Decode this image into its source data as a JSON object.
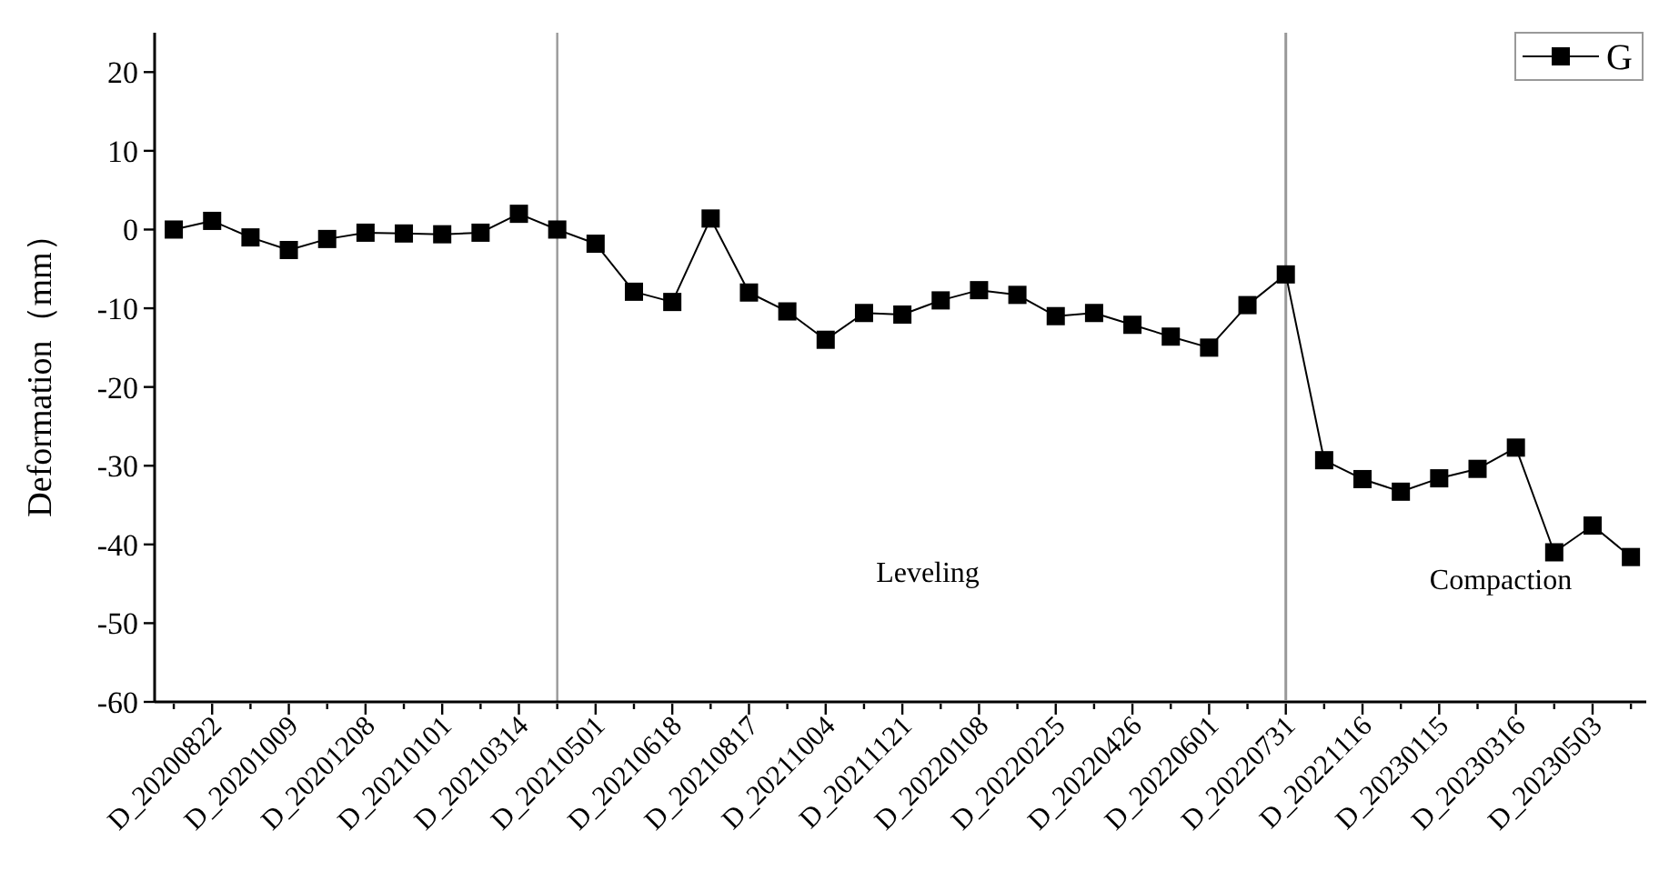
{
  "chart_data": {
    "type": "line",
    "ylabel": "Deformation（mm）",
    "categories": [
      null,
      "D_20200822",
      null,
      "D_20201009",
      null,
      "D_20201208",
      null,
      "D_20210101",
      null,
      "D_20210314",
      null,
      "D_20210501",
      null,
      "D_20210618",
      null,
      "D_20210817",
      null,
      "D_20211004",
      null,
      "D_20211121",
      null,
      "D_20220108",
      null,
      "D_20220225",
      null,
      "D_20220426",
      null,
      "D_20220601",
      null,
      "D_20220731",
      null,
      "D_20221116",
      null,
      "D_20230115",
      null,
      "D_20230316",
      null,
      "D_20230503",
      null
    ],
    "series": [
      {
        "name": "G",
        "color": "#000000",
        "values": [
          0,
          1.1,
          -1.0,
          -2.6,
          -1.2,
          -0.4,
          -0.5,
          -0.6,
          -0.4,
          2.0,
          0,
          -1.8,
          -7.9,
          -9.2,
          1.4,
          -8.0,
          -10.4,
          -14.0,
          -10.6,
          -10.8,
          -9.0,
          -7.7,
          -8.3,
          -11.0,
          -10.6,
          -12.1,
          -13.6,
          -15.0,
          -9.6,
          -5.7,
          -29.3,
          -31.7,
          -33.3,
          -31.6,
          -30.4,
          -27.7,
          -41.0,
          -37.6,
          -41.6
        ]
      }
    ],
    "ylim": [
      -60,
      25
    ],
    "yticks": [
      -60,
      -50,
      -40,
      -30,
      -20,
      -10,
      0,
      10,
      20
    ],
    "ref_lines": [
      {
        "axis": "x",
        "value": "D_20220731",
        "color": "#999999"
      }
    ],
    "annotations": [
      "Leveling",
      "Compaction"
    ],
    "marker": "square",
    "line_style": "solid",
    "legend": "top right"
  }
}
